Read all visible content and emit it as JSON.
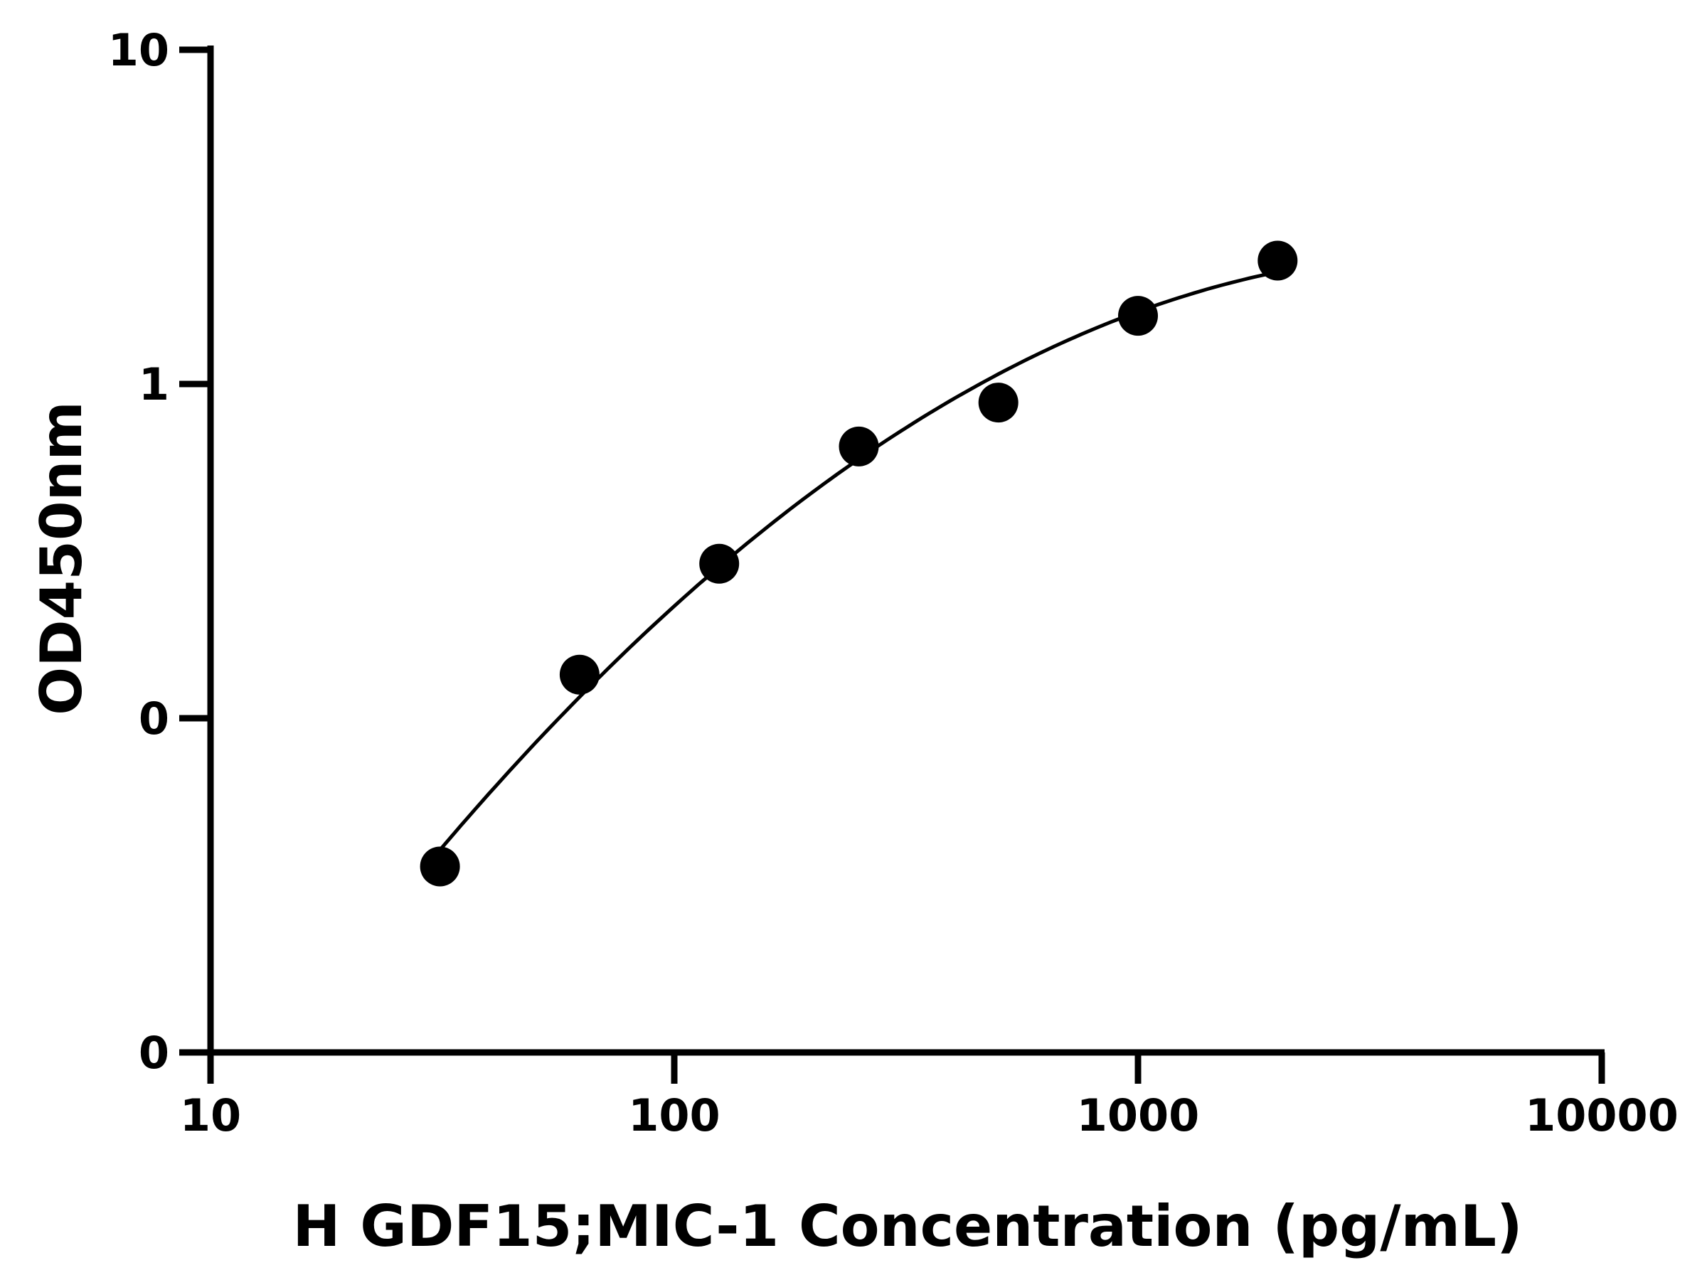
{
  "chart_data": {
    "type": "scatter",
    "title": "",
    "xlabel": "H GDF15;MIC-1 Concentration (pg/mL)",
    "ylabel": "OD450nm",
    "x_scale": "log",
    "xlim": [
      10,
      10000
    ],
    "x_ticks": [
      {
        "value": 10,
        "label": "10"
      },
      {
        "value": 100,
        "label": "100"
      },
      {
        "value": 1000,
        "label": "1000"
      },
      {
        "value": 10000,
        "label": "10000"
      }
    ],
    "y_ticks": [
      {
        "value": 0.1,
        "label": "0"
      },
      {
        "value": 1,
        "label": "1"
      },
      {
        "value": 10,
        "label": "10"
      }
    ],
    "y_axis_note": "tick labels printed as 0, 0, 1, 10 from bottom to top",
    "y_axis_bottom_label": "0",
    "grid": false,
    "legend": "none",
    "series": [
      {
        "x": [
          31.25,
          62.5,
          125,
          250,
          500,
          1000,
          2000
        ],
        "y": [
          0.036,
          0.135,
          0.29,
          0.65,
          0.88,
          1.6,
          2.34
        ],
        "fit_curve": true,
        "color": "#000000"
      }
    ]
  }
}
